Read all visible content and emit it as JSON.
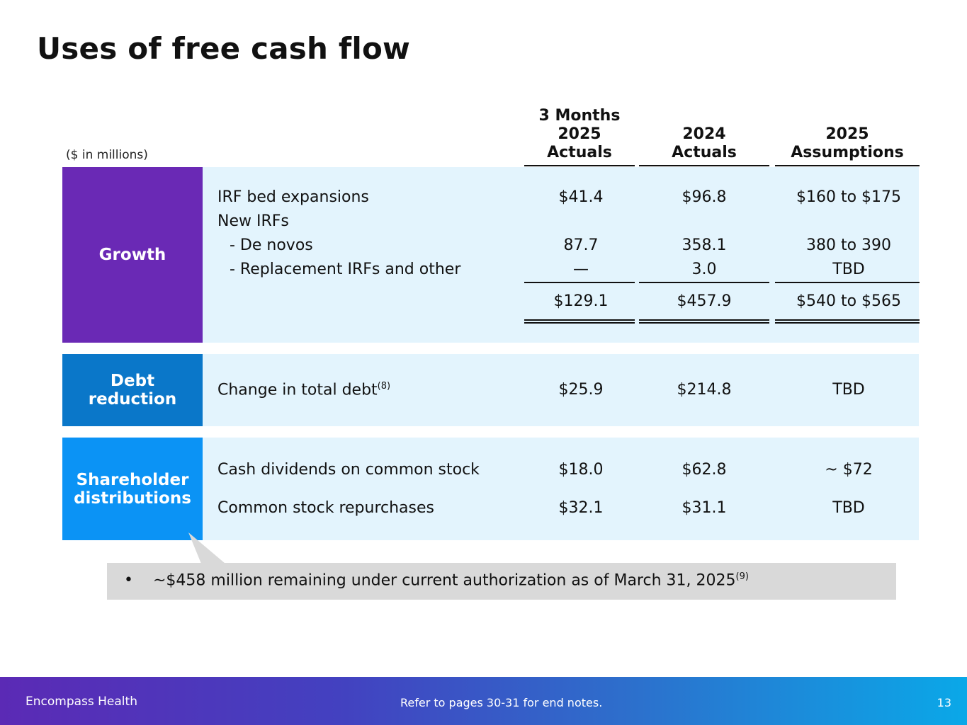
{
  "title": "Uses of free cash flow",
  "units_note": "($ in millions)",
  "columns": [
    {
      "lines": [
        "3 Months",
        "2025",
        "Actuals"
      ]
    },
    {
      "lines": [
        "2024",
        "Actuals"
      ]
    },
    {
      "lines": [
        "2025",
        "Assumptions"
      ]
    }
  ],
  "sections": {
    "growth": {
      "label": "Growth",
      "color": "#6a29b5",
      "rows": [
        {
          "label": "IRF bed expansions",
          "values": [
            "$41.4",
            "$96.8",
            "$160 to $175"
          ]
        },
        {
          "label": "New IRFs",
          "values": [
            "",
            "",
            ""
          ]
        },
        {
          "label": "- De novos",
          "values": [
            "87.7",
            "358.1",
            "380 to 390"
          ]
        },
        {
          "label": "- Replacement IRFs and other",
          "values": [
            "—",
            "3.0",
            "TBD"
          ]
        }
      ],
      "total": [
        "$129.1",
        "$457.9",
        "$540 to $565"
      ]
    },
    "debt": {
      "label_line1": "Debt",
      "label_line2": "reduction",
      "color": "#0a77c9",
      "rows": [
        {
          "label": "Change in total debt",
          "sup": "(8)",
          "values": [
            "$25.9",
            "$214.8",
            "TBD"
          ]
        }
      ]
    },
    "shareholder": {
      "label_line1": "Shareholder",
      "label_line2": "distributions",
      "color": "#0b93f5",
      "rows": [
        {
          "label": "Cash dividends on common stock",
          "values": [
            "$18.0",
            "$62.8",
            "~ $72"
          ]
        },
        {
          "label": "Common stock repurchases",
          "values": [
            "$32.1",
            "$31.1",
            "TBD"
          ]
        }
      ]
    }
  },
  "callout": {
    "bullet": "•",
    "text": "~$458 million remaining under current authorization as of March 31, 2025",
    "sup": "(9)"
  },
  "footer": {
    "company": "Encompass Health",
    "note": "Refer to pages 30-31 for end notes.",
    "page": "13"
  }
}
